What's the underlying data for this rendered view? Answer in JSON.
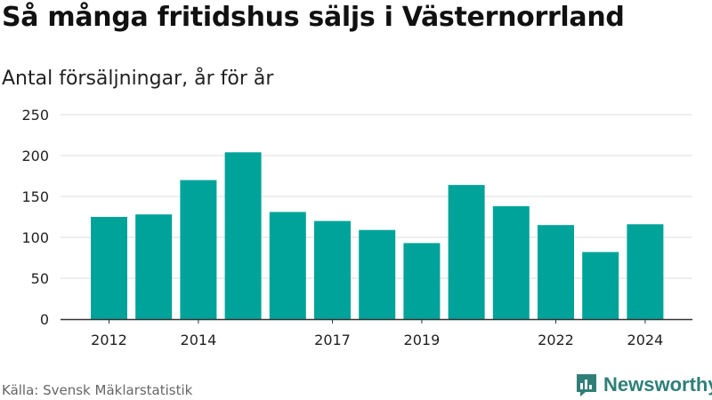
{
  "header": {
    "title": "Så många fritidshus säljs i Västernorrland",
    "subtitle": "Antal försäljningar, år för år"
  },
  "footer": {
    "source": "Källa: Svensk Mäklarstatistik",
    "brand": "Newsworthy",
    "brand_icon": "newsworthy-logo-icon"
  },
  "colors": {
    "bar": "#00a39a",
    "grid": "#dddddd",
    "axis": "#333333",
    "brand": "#2f7f78"
  },
  "chart_data": {
    "type": "bar",
    "title": "Så många fritidshus säljs i Västernorrland",
    "subtitle": "Antal försäljningar, år för år",
    "categories": [
      "2012",
      "2013",
      "2014",
      "2015",
      "2016",
      "2017",
      "2018",
      "2019",
      "2020",
      "2021",
      "2022",
      "2023",
      "2024"
    ],
    "values": [
      125,
      128,
      170,
      204,
      131,
      120,
      109,
      93,
      164,
      138,
      115,
      82,
      116
    ],
    "x_tick_labels": [
      "2012",
      "2014",
      "2017",
      "2019",
      "2022",
      "2024"
    ],
    "y_ticks": [
      0,
      50,
      100,
      150,
      200,
      250
    ],
    "ylim": [
      0,
      250
    ],
    "grid": true,
    "legend": "none"
  }
}
